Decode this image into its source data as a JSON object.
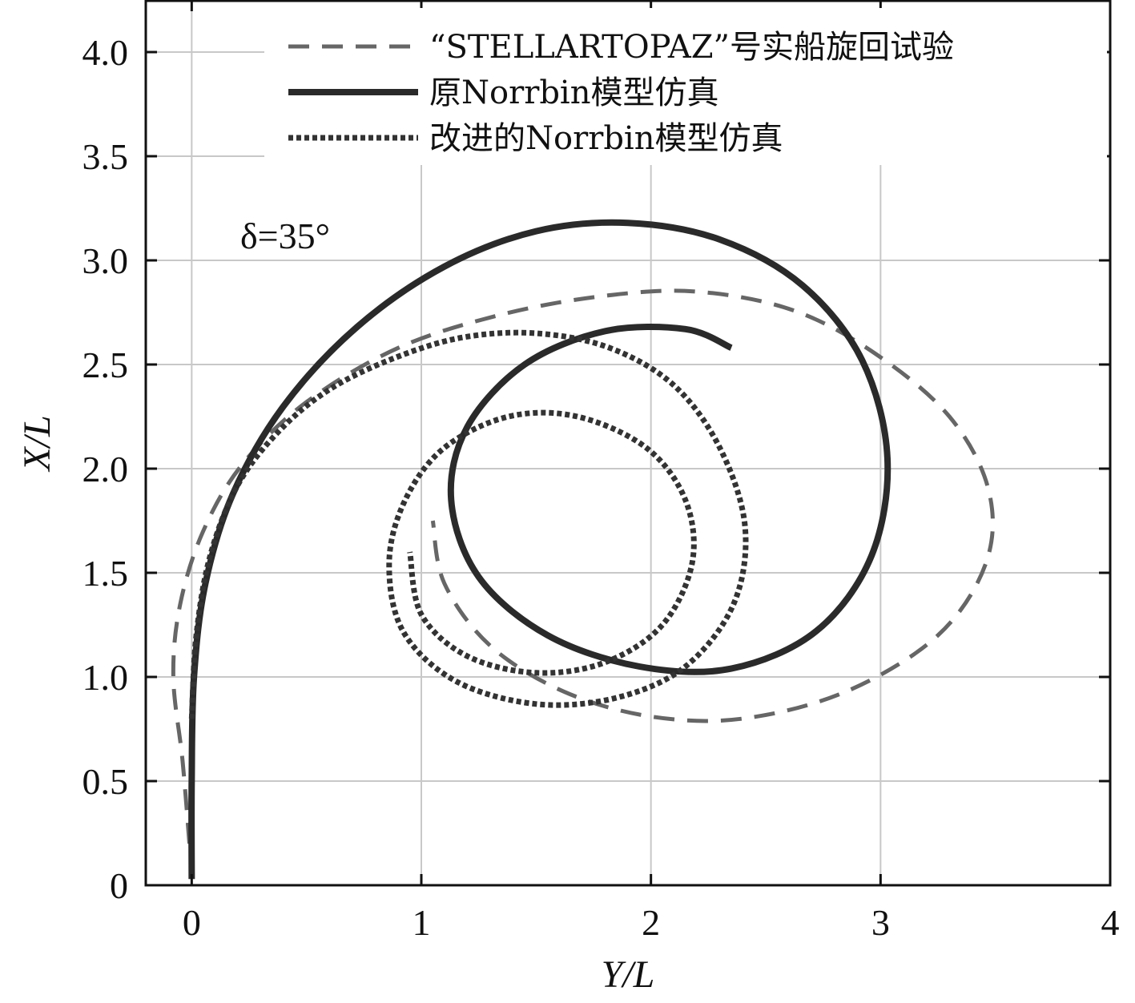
{
  "chart_data": {
    "type": "line",
    "title": "",
    "xlabel": "Y/L",
    "ylabel": "X/L",
    "xlim": [
      -0.2,
      4
    ],
    "ylim": [
      0,
      4.25
    ],
    "x_ticks": [
      0,
      1,
      2,
      3,
      4
    ],
    "x_tick_labels": [
      "0",
      "1",
      "2",
      "3",
      "4"
    ],
    "y_ticks": [
      0,
      0.5,
      1.0,
      1.5,
      2.0,
      2.5,
      3.0,
      3.5,
      4.0
    ],
    "y_tick_labels": [
      "0",
      "0.5",
      "1.0",
      "1.5",
      "2.0",
      "2.5",
      "3.0",
      "3.5",
      "4.0"
    ],
    "grid": true,
    "legend_position": "top",
    "annotation": "δ=35°",
    "series": [
      {
        "name": "“STELLARTOPAZ”号实船旋回试验",
        "style": "dashed",
        "color": "#666666",
        "points": [
          [
            -0.01,
            0.2
          ],
          [
            -0.04,
            0.6
          ],
          [
            -0.08,
            1.0
          ],
          [
            -0.05,
            1.35
          ],
          [
            0.05,
            1.7
          ],
          [
            0.22,
            2.02
          ],
          [
            0.5,
            2.32
          ],
          [
            0.9,
            2.58
          ],
          [
            1.35,
            2.74
          ],
          [
            1.8,
            2.83
          ],
          [
            2.2,
            2.85
          ],
          [
            2.62,
            2.76
          ],
          [
            2.98,
            2.55
          ],
          [
            3.3,
            2.25
          ],
          [
            3.47,
            1.9
          ],
          [
            3.46,
            1.55
          ],
          [
            3.25,
            1.2
          ],
          [
            2.85,
            0.93
          ],
          [
            2.4,
            0.8
          ],
          [
            2.0,
            0.81
          ],
          [
            1.62,
            0.93
          ],
          [
            1.3,
            1.15
          ],
          [
            1.1,
            1.45
          ],
          [
            1.05,
            1.75
          ]
        ]
      },
      {
        "name": "原Norrbin模型仿真",
        "style": "solid",
        "color": "#2a2a2a",
        "points": [
          [
            0.0,
            0.03
          ],
          [
            0.0,
            0.5
          ],
          [
            0.01,
            1.0
          ],
          [
            0.06,
            1.45
          ],
          [
            0.18,
            1.88
          ],
          [
            0.4,
            2.3
          ],
          [
            0.72,
            2.68
          ],
          [
            1.1,
            2.97
          ],
          [
            1.5,
            3.14
          ],
          [
            1.9,
            3.18
          ],
          [
            2.3,
            3.1
          ],
          [
            2.66,
            2.88
          ],
          [
            2.92,
            2.52
          ],
          [
            3.03,
            2.05
          ],
          [
            2.96,
            1.58
          ],
          [
            2.72,
            1.22
          ],
          [
            2.35,
            1.04
          ],
          [
            1.95,
            1.05
          ],
          [
            1.55,
            1.2
          ],
          [
            1.25,
            1.48
          ],
          [
            1.13,
            1.85
          ],
          [
            1.2,
            2.2
          ],
          [
            1.45,
            2.5
          ],
          [
            1.8,
            2.66
          ],
          [
            2.15,
            2.67
          ],
          [
            2.35,
            2.58
          ]
        ]
      },
      {
        "name": "改进的Norrbin模型仿真",
        "style": "dotted",
        "color": "#333333",
        "points": [
          [
            0.0,
            0.8
          ],
          [
            0.02,
            1.2
          ],
          [
            0.08,
            1.58
          ],
          [
            0.2,
            1.92
          ],
          [
            0.38,
            2.18
          ],
          [
            0.6,
            2.38
          ],
          [
            0.88,
            2.53
          ],
          [
            1.18,
            2.63
          ],
          [
            1.5,
            2.65
          ],
          [
            1.82,
            2.58
          ],
          [
            2.1,
            2.4
          ],
          [
            2.3,
            2.1
          ],
          [
            2.41,
            1.72
          ],
          [
            2.36,
            1.35
          ],
          [
            2.15,
            1.05
          ],
          [
            1.85,
            0.9
          ],
          [
            1.5,
            0.87
          ],
          [
            1.15,
            0.98
          ],
          [
            0.92,
            1.22
          ],
          [
            0.86,
            1.55
          ],
          [
            0.93,
            1.85
          ],
          [
            1.1,
            2.1
          ],
          [
            1.38,
            2.25
          ],
          [
            1.68,
            2.25
          ],
          [
            1.98,
            2.1
          ],
          [
            2.15,
            1.85
          ],
          [
            2.18,
            1.55
          ],
          [
            2.05,
            1.25
          ],
          [
            1.8,
            1.07
          ],
          [
            1.5,
            1.02
          ],
          [
            1.2,
            1.1
          ],
          [
            1.0,
            1.3
          ],
          [
            0.95,
            1.6
          ]
        ]
      }
    ]
  }
}
